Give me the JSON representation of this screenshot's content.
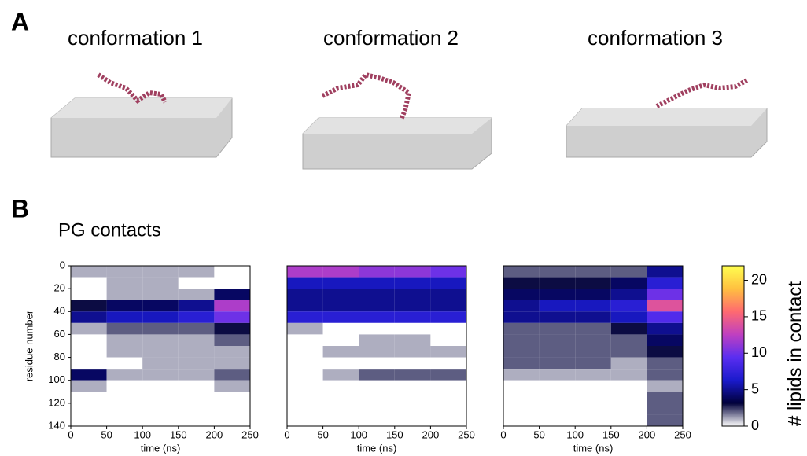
{
  "panel_labels": [
    "A",
    "B"
  ],
  "conformations": [
    "conformation 1",
    "conformation 2",
    "conformation 3"
  ],
  "section_title": "PG contacts",
  "chart_data": [
    {
      "type": "heatmap",
      "xlabel": "time (ns)",
      "ylabel": "residue number",
      "x_bins": [
        0,
        50,
        100,
        150,
        200,
        250
      ],
      "y_bins": [
        0,
        10,
        20,
        30,
        40,
        50,
        60,
        70,
        80,
        90,
        100,
        110,
        120,
        130,
        140
      ],
      "xlim": [
        0,
        250
      ],
      "ylim": [
        140,
        0
      ],
      "xticks": [
        0,
        50,
        100,
        150,
        200,
        250
      ],
      "yticks": [
        0,
        20,
        40,
        60,
        80,
        100,
        120,
        140
      ],
      "values": [
        [
          1,
          1,
          1,
          1,
          0
        ],
        [
          0,
          1,
          1,
          0,
          0
        ],
        [
          0,
          1,
          1,
          1,
          4
        ],
        [
          3,
          4,
          4,
          5,
          12
        ],
        [
          5,
          6,
          6,
          7,
          10
        ],
        [
          1,
          2,
          2,
          2,
          3
        ],
        [
          0,
          1,
          1,
          1,
          2
        ],
        [
          0,
          1,
          1,
          1,
          1
        ],
        [
          0,
          0,
          1,
          1,
          1
        ],
        [
          4,
          1,
          1,
          1,
          2
        ],
        [
          1,
          0,
          0,
          0,
          1
        ],
        [
          0,
          0,
          0,
          0,
          0
        ],
        [
          0,
          0,
          0,
          0,
          0
        ],
        [
          0,
          0,
          0,
          0,
          0
        ]
      ]
    },
    {
      "type": "heatmap",
      "xlabel": "time (ns)",
      "x_bins": [
        0,
        50,
        100,
        150,
        200,
        250
      ],
      "y_bins": [
        0,
        10,
        20,
        30,
        40,
        50,
        60,
        70,
        80,
        90,
        100,
        110,
        120,
        130,
        140
      ],
      "xlim": [
        0,
        250
      ],
      "ylim": [
        140,
        0
      ],
      "xticks": [
        0,
        50,
        100,
        150,
        200,
        250
      ],
      "values": [
        [
          12,
          12,
          11,
          11,
          10
        ],
        [
          6,
          6,
          6,
          6,
          6
        ],
        [
          5,
          5,
          5,
          5,
          5
        ],
        [
          5,
          5,
          5,
          5,
          5
        ],
        [
          7,
          7,
          7,
          7,
          7
        ],
        [
          1,
          0,
          0,
          0,
          0
        ],
        [
          0,
          0,
          1,
          1,
          0
        ],
        [
          0,
          1,
          1,
          1,
          1
        ],
        [
          0,
          0,
          0,
          0,
          0
        ],
        [
          0,
          1,
          2,
          2,
          2
        ],
        [
          0,
          0,
          0,
          0,
          0
        ],
        [
          0,
          0,
          0,
          0,
          0
        ],
        [
          0,
          0,
          0,
          0,
          0
        ],
        [
          0,
          0,
          0,
          0,
          0
        ]
      ]
    },
    {
      "type": "heatmap",
      "xlabel": "time (ns)",
      "x_bins": [
        0,
        50,
        100,
        150,
        200,
        250
      ],
      "y_bins": [
        0,
        10,
        20,
        30,
        40,
        50,
        60,
        70,
        80,
        90,
        100,
        110,
        120,
        130,
        140
      ],
      "xlim": [
        0,
        250
      ],
      "ylim": [
        140,
        0
      ],
      "xticks": [
        0,
        50,
        100,
        150,
        200,
        250
      ],
      "values": [
        [
          2,
          2,
          2,
          2,
          5
        ],
        [
          3,
          3,
          3,
          4,
          7
        ],
        [
          4,
          4,
          4,
          5,
          10
        ],
        [
          5,
          6,
          6,
          7,
          14
        ],
        [
          5,
          5,
          5,
          6,
          9
        ],
        [
          2,
          2,
          2,
          3,
          5
        ],
        [
          2,
          2,
          2,
          2,
          4
        ],
        [
          2,
          2,
          2,
          2,
          3
        ],
        [
          2,
          2,
          2,
          1,
          2
        ],
        [
          1,
          1,
          1,
          1,
          2
        ],
        [
          0,
          0,
          0,
          0,
          1
        ],
        [
          0,
          0,
          0,
          0,
          2
        ],
        [
          0,
          0,
          0,
          0,
          2
        ],
        [
          0,
          0,
          0,
          0,
          2
        ]
      ]
    },
    {
      "type": "colorbar",
      "label": "# lipids in contact",
      "lim": [
        0,
        22
      ],
      "ticks": [
        0,
        5,
        10,
        15,
        20
      ],
      "colormap": [
        "#ffffff",
        "#00003a",
        "#1a1acc",
        "#5a2ef0",
        "#c040c0",
        "#ff6a70",
        "#ffc040",
        "#ffff50"
      ]
    }
  ]
}
